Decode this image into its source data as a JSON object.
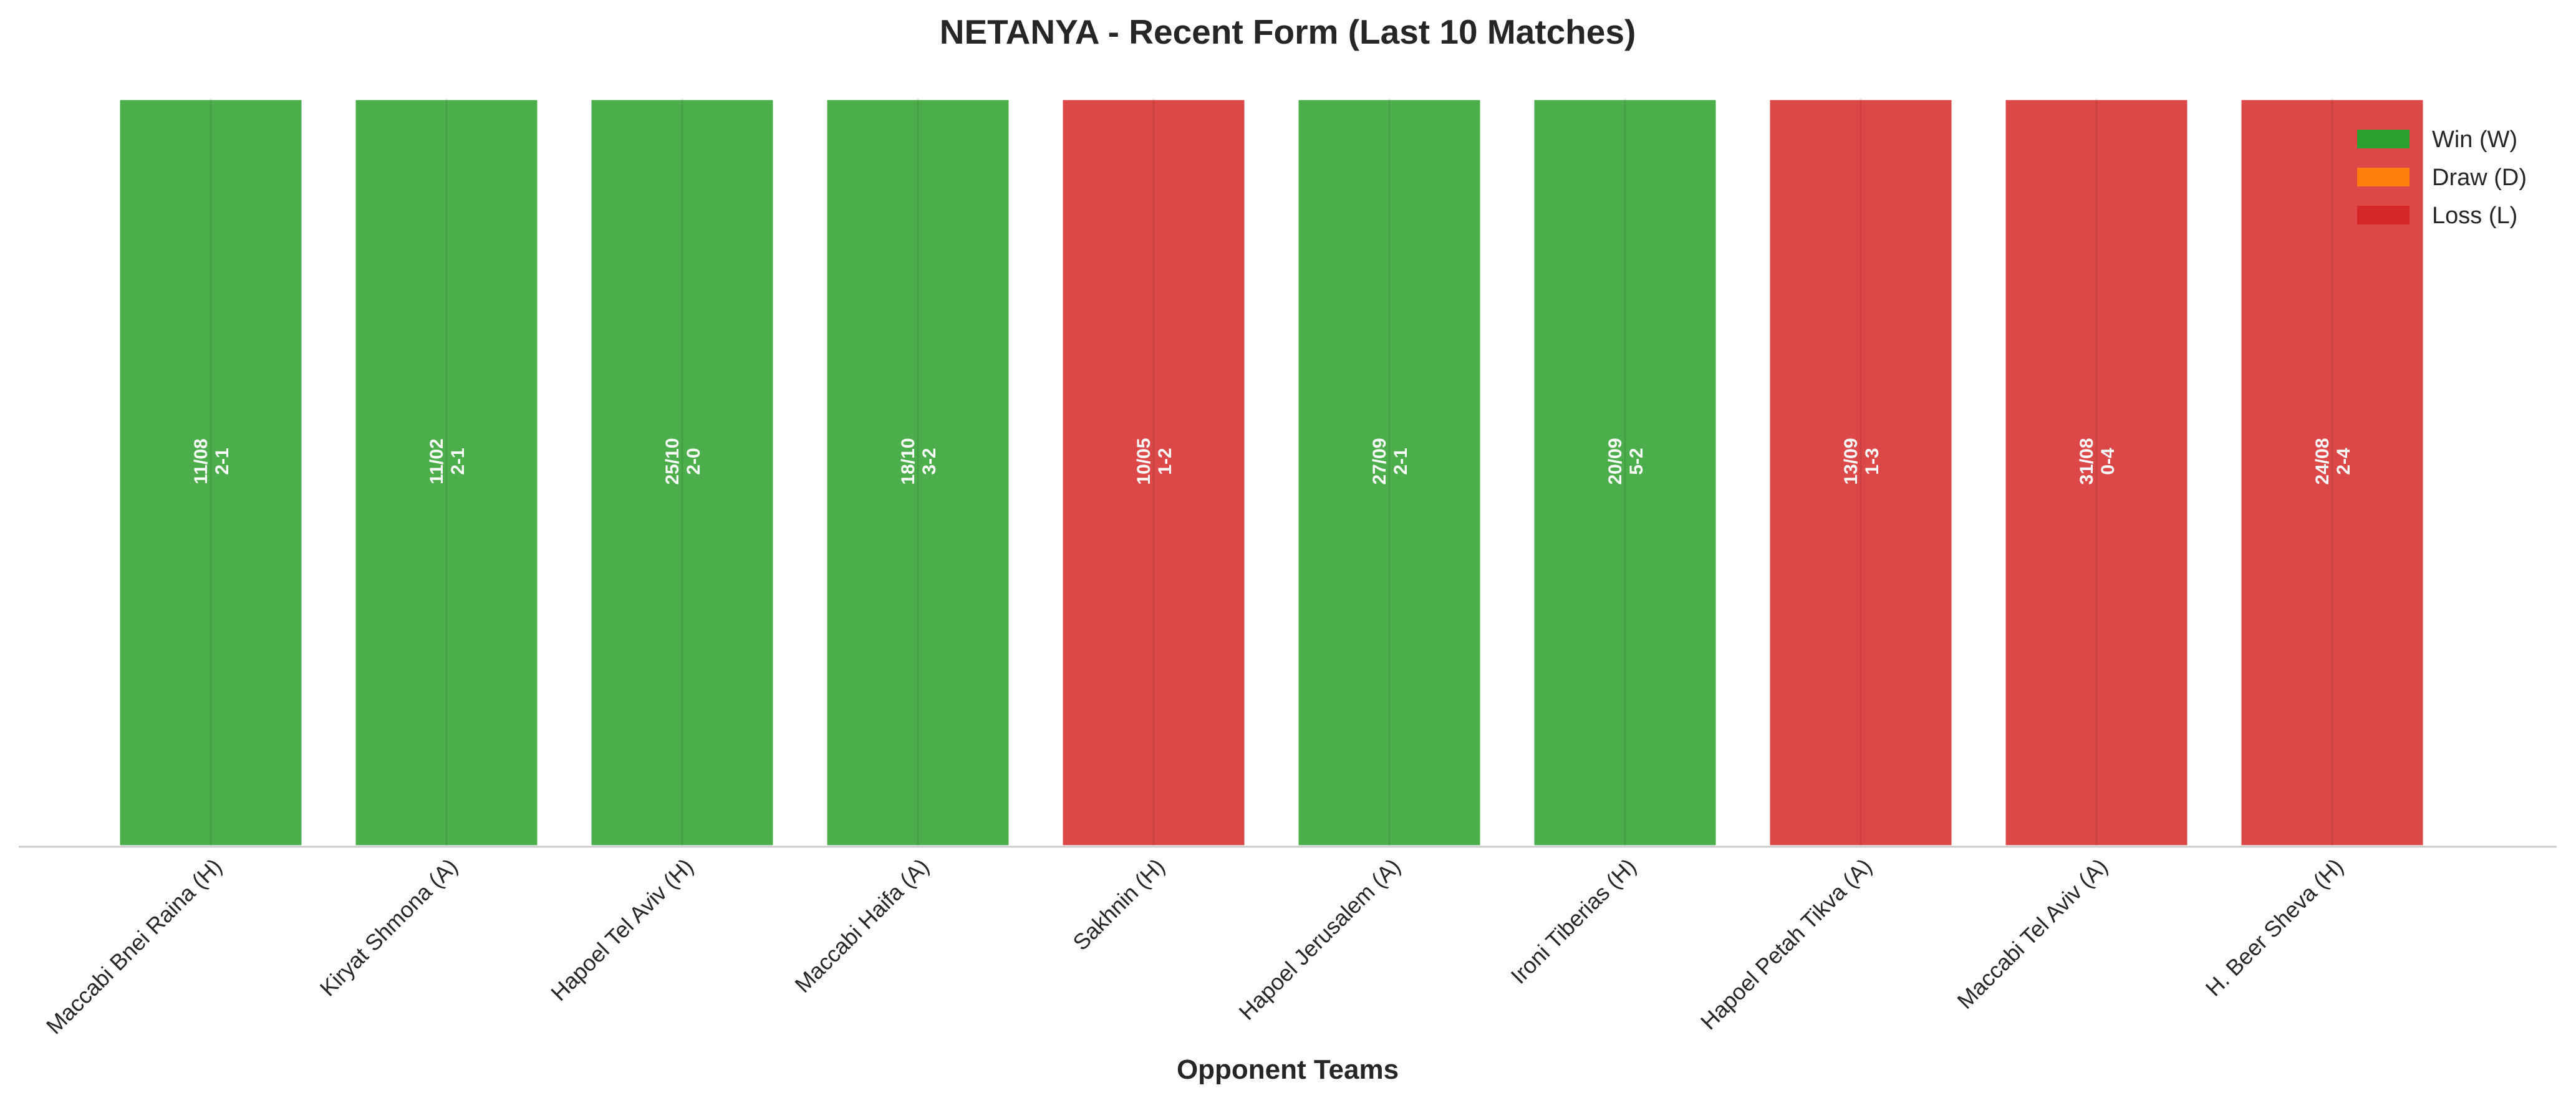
{
  "chart_data": {
    "type": "bar",
    "title": "NETANYA - Recent Form (Last 10 Matches)",
    "xlabel": "Opponent Teams",
    "ylabel": "",
    "ylim": [
      0,
      1
    ],
    "grid": false,
    "legend_position": "top-right",
    "categories": [
      "Maccabi Bnei Raina (H)",
      "Kiryat Shmona (A)",
      "Hapoel Tel Aviv (H)",
      "Maccabi Haifa (A)",
      "Sakhnin (H)",
      "Hapoel Jerusalem (A)",
      "Ironi Tiberias (H)",
      "Hapoel Petah Tikva (A)",
      "Maccabi Tel Aviv (A)",
      "H. Beer Sheva (H)"
    ],
    "values": [
      1,
      1,
      1,
      1,
      1,
      1,
      1,
      1,
      1,
      1
    ],
    "results": [
      "W",
      "W",
      "W",
      "W",
      "L",
      "W",
      "W",
      "L",
      "L",
      "L"
    ],
    "dates": [
      "11/08",
      "11/02",
      "25/10",
      "18/10",
      "10/05",
      "27/09",
      "20/09",
      "13/09",
      "31/08",
      "24/08"
    ],
    "scores": [
      "2-1",
      "2-1",
      "2-0",
      "3-2",
      "1-2",
      "2-1",
      "5-2",
      "1-3",
      "0-4",
      "2-4"
    ],
    "legend": [
      {
        "key": "W",
        "label": "Win (W)",
        "color": "#2ca02c"
      },
      {
        "key": "D",
        "label": "Draw (D)",
        "color": "#ff7f0e"
      },
      {
        "key": "L",
        "label": "Loss (L)",
        "color": "#d62728"
      }
    ]
  }
}
